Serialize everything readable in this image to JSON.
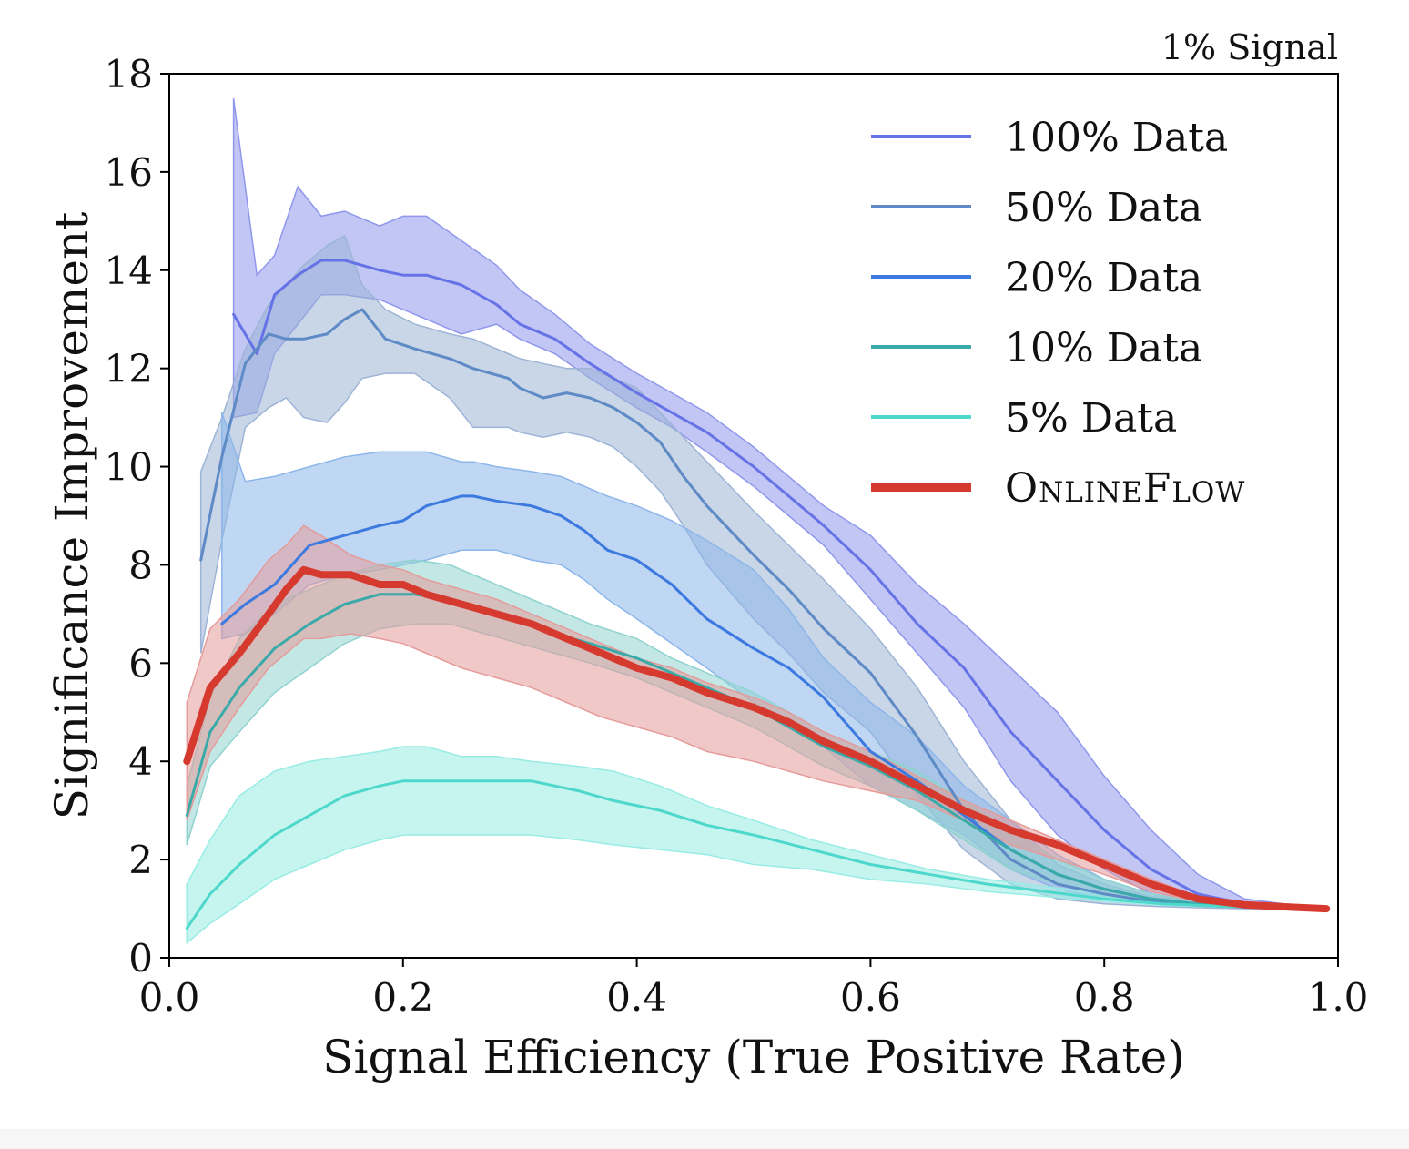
{
  "chart_data": {
    "type": "line",
    "annotation": "1% Signal",
    "xlabel": "Signal Efficiency (True Positive Rate)",
    "ylabel": "Significance Improvement",
    "xlim": [
      0.0,
      1.0
    ],
    "ylim": [
      0,
      18
    ],
    "xticks": [
      "0.0",
      "0.2",
      "0.4",
      "0.6",
      "0.8",
      "1.0"
    ],
    "yticks": [
      "0",
      "2",
      "4",
      "6",
      "8",
      "10",
      "12",
      "14",
      "16",
      "18"
    ],
    "grid": false,
    "legend_position": "top-right",
    "series": [
      {
        "name": "100% Data",
        "color": "#6673e6",
        "band_color": "#8f97ec",
        "line_width": 3,
        "x": [
          0.055,
          0.075,
          0.09,
          0.11,
          0.13,
          0.15,
          0.18,
          0.2,
          0.22,
          0.25,
          0.28,
          0.3,
          0.33,
          0.36,
          0.4,
          0.43,
          0.46,
          0.5,
          0.53,
          0.56,
          0.6,
          0.64,
          0.68,
          0.72,
          0.76,
          0.8,
          0.84,
          0.88,
          0.92,
          0.96,
          0.99
        ],
        "y": [
          13.1,
          12.3,
          13.5,
          13.9,
          14.2,
          14.2,
          14.0,
          13.9,
          13.9,
          13.7,
          13.3,
          12.9,
          12.6,
          12.1,
          11.5,
          11.1,
          10.7,
          10.0,
          9.4,
          8.8,
          7.9,
          6.8,
          5.9,
          4.6,
          3.6,
          2.6,
          1.8,
          1.3,
          1.1,
          1.05,
          1.0
        ],
        "y_upper": [
          17.5,
          13.9,
          14.3,
          15.7,
          15.1,
          15.2,
          14.9,
          15.1,
          15.1,
          14.6,
          14.1,
          13.6,
          13.1,
          12.5,
          11.9,
          11.5,
          11.1,
          10.4,
          9.8,
          9.2,
          8.6,
          7.6,
          6.8,
          5.9,
          5.0,
          3.7,
          2.6,
          1.7,
          1.2,
          1.08,
          1.02
        ],
        "y_lower": [
          11.0,
          11.1,
          12.3,
          12.9,
          13.5,
          13.5,
          13.4,
          13.2,
          13.0,
          12.7,
          12.9,
          12.6,
          12.3,
          11.8,
          11.2,
          10.8,
          10.3,
          9.6,
          9.0,
          8.4,
          7.3,
          6.2,
          5.1,
          3.6,
          2.5,
          1.8,
          1.3,
          1.1,
          1.02,
          1.0,
          0.98
        ]
      },
      {
        "name": "50% Data",
        "color": "#5e8ac6",
        "band_color": "#9db4d6",
        "line_width": 3,
        "x": [
          0.027,
          0.045,
          0.065,
          0.085,
          0.1,
          0.115,
          0.135,
          0.15,
          0.165,
          0.185,
          0.21,
          0.24,
          0.26,
          0.29,
          0.3,
          0.32,
          0.34,
          0.36,
          0.38,
          0.4,
          0.42,
          0.44,
          0.46,
          0.5,
          0.53,
          0.56,
          0.6,
          0.64,
          0.68,
          0.72,
          0.76,
          0.8,
          0.84,
          0.88,
          0.92,
          0.96,
          0.99
        ],
        "y": [
          8.1,
          10.2,
          12.1,
          12.7,
          12.6,
          12.6,
          12.7,
          13.0,
          13.2,
          12.6,
          12.4,
          12.2,
          12.0,
          11.8,
          11.6,
          11.4,
          11.5,
          11.4,
          11.2,
          10.9,
          10.5,
          9.8,
          9.2,
          8.2,
          7.5,
          6.7,
          5.8,
          4.5,
          3.0,
          2.0,
          1.5,
          1.3,
          1.15,
          1.07,
          1.03,
          1.01,
          1.0
        ],
        "y_upper": [
          9.9,
          11.0,
          12.4,
          13.3,
          13.7,
          14.1,
          14.5,
          14.7,
          13.7,
          13.2,
          12.9,
          12.7,
          12.6,
          12.3,
          12.2,
          12.1,
          12.0,
          12.0,
          11.8,
          11.6,
          11.1,
          10.6,
          10.1,
          9.1,
          8.4,
          7.7,
          6.7,
          5.5,
          4.0,
          2.8,
          1.9,
          1.5,
          1.25,
          1.12,
          1.05,
          1.02,
          1.01
        ],
        "y_lower": [
          6.2,
          8.5,
          10.8,
          11.2,
          11.4,
          11.0,
          10.9,
          11.3,
          11.8,
          11.9,
          11.9,
          11.4,
          10.8,
          10.8,
          10.7,
          10.6,
          10.7,
          10.6,
          10.4,
          10.0,
          9.5,
          8.8,
          8.0,
          6.9,
          6.2,
          5.4,
          4.6,
          3.3,
          2.2,
          1.5,
          1.2,
          1.1,
          1.05,
          1.02,
          1.0,
          0.99,
          0.99
        ]
      },
      {
        "name": "20% Data",
        "color": "#3c7ae0",
        "band_color": "#8cb6ea",
        "line_width": 3,
        "x": [
          0.045,
          0.065,
          0.09,
          0.12,
          0.15,
          0.18,
          0.2,
          0.22,
          0.25,
          0.26,
          0.28,
          0.31,
          0.335,
          0.355,
          0.375,
          0.4,
          0.43,
          0.46,
          0.5,
          0.53,
          0.56,
          0.6,
          0.64,
          0.68,
          0.72,
          0.76,
          0.8,
          0.84,
          0.88,
          0.92,
          0.96,
          0.99
        ],
        "y": [
          6.8,
          7.2,
          7.6,
          8.4,
          8.6,
          8.8,
          8.9,
          9.2,
          9.4,
          9.4,
          9.3,
          9.2,
          9.0,
          8.7,
          8.3,
          8.1,
          7.6,
          6.9,
          6.3,
          5.9,
          5.3,
          4.2,
          3.6,
          2.9,
          2.2,
          1.7,
          1.4,
          1.2,
          1.1,
          1.05,
          1.02,
          1.0
        ],
        "y_upper": [
          11.1,
          9.7,
          9.8,
          10.0,
          10.2,
          10.3,
          10.3,
          10.3,
          10.1,
          10.1,
          10.0,
          9.9,
          9.8,
          9.6,
          9.4,
          9.2,
          8.9,
          8.5,
          7.9,
          7.1,
          6.1,
          5.2,
          4.5,
          3.5,
          2.8,
          2.1,
          1.6,
          1.3,
          1.15,
          1.07,
          1.03,
          1.01
        ],
        "y_lower": [
          6.5,
          6.6,
          7.0,
          7.6,
          7.8,
          7.9,
          8.0,
          8.1,
          8.3,
          8.3,
          8.3,
          8.1,
          8.0,
          7.7,
          7.3,
          6.9,
          6.4,
          5.9,
          5.2,
          4.8,
          4.3,
          3.5,
          3.0,
          2.5,
          1.8,
          1.4,
          1.2,
          1.1,
          1.05,
          1.02,
          1.0,
          0.99
        ]
      },
      {
        "name": "10% Data",
        "color": "#3aaaa8",
        "band_color": "#8fd3cf",
        "line_width": 3,
        "x": [
          0.015,
          0.035,
          0.06,
          0.09,
          0.12,
          0.15,
          0.18,
          0.21,
          0.24,
          0.27,
          0.3,
          0.33,
          0.36,
          0.4,
          0.43,
          0.46,
          0.5,
          0.53,
          0.56,
          0.6,
          0.64,
          0.68,
          0.72,
          0.76,
          0.8,
          0.84,
          0.88,
          0.92,
          0.96,
          0.99
        ],
        "y": [
          2.9,
          4.6,
          5.5,
          6.3,
          6.8,
          7.2,
          7.4,
          7.4,
          7.3,
          7.1,
          6.9,
          6.6,
          6.4,
          6.1,
          5.8,
          5.5,
          5.1,
          4.7,
          4.3,
          3.9,
          3.4,
          2.8,
          2.2,
          1.7,
          1.4,
          1.2,
          1.1,
          1.05,
          1.02,
          1.0
        ],
        "y_upper": [
          3.5,
          5.3,
          6.5,
          7.2,
          7.5,
          7.8,
          8.0,
          8.1,
          8.0,
          7.7,
          7.4,
          7.1,
          6.8,
          6.5,
          6.1,
          5.8,
          5.4,
          5.0,
          4.6,
          4.2,
          3.8,
          3.2,
          2.6,
          2.0,
          1.6,
          1.3,
          1.15,
          1.07,
          1.03,
          1.01
        ],
        "y_lower": [
          2.3,
          3.9,
          4.6,
          5.4,
          5.9,
          6.4,
          6.7,
          6.8,
          6.8,
          6.6,
          6.4,
          6.2,
          6.0,
          5.7,
          5.4,
          5.1,
          4.7,
          4.3,
          3.9,
          3.5,
          3.0,
          2.4,
          1.8,
          1.5,
          1.25,
          1.1,
          1.05,
          1.02,
          1.0,
          0.99
        ]
      },
      {
        "name": "5% Data",
        "color": "#4ed8cb",
        "band_color": "#98ece4",
        "line_width": 3,
        "x": [
          0.015,
          0.035,
          0.06,
          0.09,
          0.12,
          0.15,
          0.18,
          0.2,
          0.22,
          0.25,
          0.28,
          0.31,
          0.35,
          0.38,
          0.42,
          0.46,
          0.5,
          0.55,
          0.6,
          0.65,
          0.7,
          0.75,
          0.8,
          0.85,
          0.9,
          0.95,
          0.99
        ],
        "y": [
          0.6,
          1.3,
          1.9,
          2.5,
          2.9,
          3.3,
          3.5,
          3.6,
          3.6,
          3.6,
          3.6,
          3.6,
          3.4,
          3.2,
          3.0,
          2.7,
          2.5,
          2.2,
          1.9,
          1.7,
          1.5,
          1.35,
          1.2,
          1.1,
          1.05,
          1.02,
          1.0
        ],
        "y_upper": [
          1.5,
          2.4,
          3.3,
          3.8,
          4.0,
          4.1,
          4.2,
          4.3,
          4.3,
          4.1,
          4.1,
          4.0,
          3.9,
          3.8,
          3.5,
          3.1,
          2.8,
          2.4,
          2.1,
          1.8,
          1.6,
          1.45,
          1.3,
          1.15,
          1.08,
          1.03,
          1.01
        ],
        "y_lower": [
          0.3,
          0.7,
          1.1,
          1.6,
          1.9,
          2.2,
          2.4,
          2.5,
          2.5,
          2.5,
          2.5,
          2.5,
          2.4,
          2.3,
          2.2,
          2.1,
          1.9,
          1.8,
          1.6,
          1.5,
          1.35,
          1.25,
          1.15,
          1.07,
          1.03,
          1.01,
          0.99
        ]
      },
      {
        "name": "OnlineFlow",
        "color": "#d63a2f",
        "band_color": "#e59b9a",
        "line_width": 8,
        "x": [
          0.015,
          0.035,
          0.06,
          0.085,
          0.1,
          0.115,
          0.13,
          0.155,
          0.18,
          0.2,
          0.22,
          0.25,
          0.28,
          0.31,
          0.34,
          0.37,
          0.4,
          0.43,
          0.46,
          0.5,
          0.53,
          0.56,
          0.6,
          0.64,
          0.68,
          0.72,
          0.76,
          0.8,
          0.84,
          0.88,
          0.92,
          0.96,
          0.99
        ],
        "y": [
          4.0,
          5.5,
          6.2,
          7.0,
          7.5,
          7.9,
          7.8,
          7.8,
          7.6,
          7.6,
          7.4,
          7.2,
          7.0,
          6.8,
          6.5,
          6.2,
          5.9,
          5.7,
          5.4,
          5.1,
          4.8,
          4.4,
          4.0,
          3.5,
          3.0,
          2.6,
          2.3,
          1.9,
          1.5,
          1.2,
          1.08,
          1.03,
          1.0
        ],
        "y_upper": [
          5.2,
          6.7,
          7.3,
          8.1,
          8.4,
          8.8,
          8.6,
          8.2,
          8.0,
          7.9,
          7.7,
          7.5,
          7.3,
          7.0,
          6.7,
          6.4,
          6.1,
          5.9,
          5.6,
          5.3,
          5.0,
          4.6,
          4.2,
          3.7,
          3.2,
          2.8,
          2.4,
          2.0,
          1.6,
          1.25,
          1.1,
          1.04,
          1.01
        ],
        "y_lower": [
          2.8,
          4.2,
          5.1,
          5.9,
          6.2,
          6.5,
          6.5,
          6.6,
          6.5,
          6.4,
          6.2,
          5.9,
          5.7,
          5.5,
          5.2,
          4.9,
          4.7,
          4.5,
          4.2,
          4.0,
          3.8,
          3.6,
          3.4,
          3.2,
          2.8,
          2.3,
          2.0,
          1.7,
          1.35,
          1.15,
          1.05,
          1.01,
          0.99
        ]
      }
    ]
  }
}
